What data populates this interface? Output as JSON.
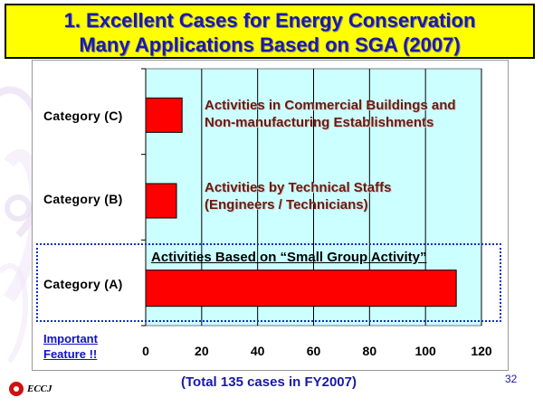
{
  "title": {
    "line1": "1. Excellent Cases for Energy Conservation",
    "line2": "Many Applications Based on SGA (2007)"
  },
  "chart_data": {
    "type": "bar",
    "orientation": "horizontal",
    "categories": [
      "Category (C)",
      "Category (B)",
      "Category (A)"
    ],
    "values": [
      13,
      11,
      111
    ],
    "xlim": [
      0,
      120
    ],
    "xticks": [
      0,
      20,
      40,
      60,
      80,
      100,
      120
    ],
    "grid": true,
    "title": "",
    "xlabel": "",
    "ylabel": "",
    "bar_color": "#ff0000",
    "plot_bg": "#ccffff",
    "annotations": {
      "c_line1": "Activities in Commercial Buildings and",
      "c_line2": "Non-manufacturing Establishments",
      "b_line1": "Activities by Technical Staffs",
      "b_line2": "(Engineers / Technicians)",
      "a": "Activities Based on “Small Group Activity”"
    }
  },
  "important_line1": "Important",
  "important_line2": "Feature !!",
  "total_note": "(Total 135 cases in FY2007)",
  "page_number": "32",
  "logo_text": "ECCJ",
  "colors": {
    "title_bg": "#ffff00",
    "title_text": "#1a1aa6",
    "accent_blue": "#1030c8"
  }
}
